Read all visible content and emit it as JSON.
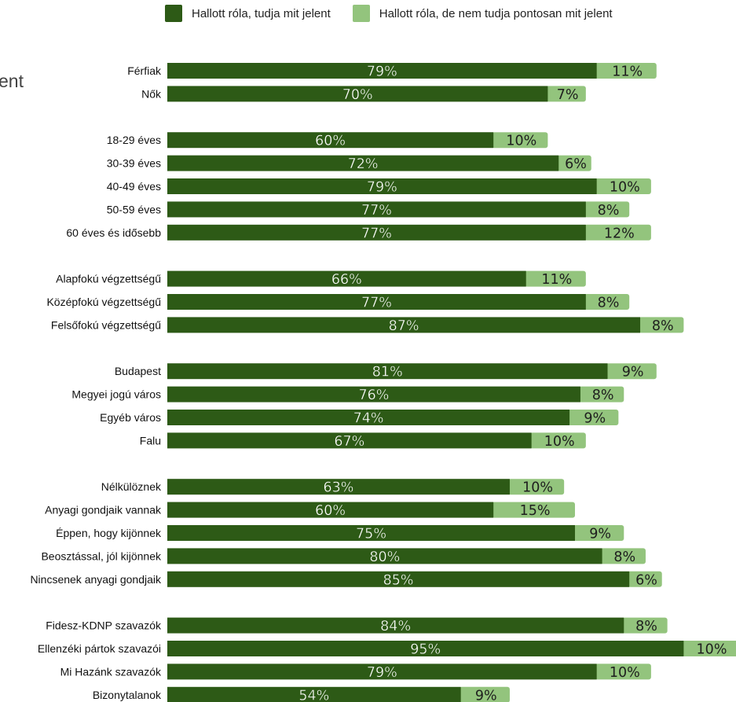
{
  "partial_title": "ent",
  "colors": {
    "dark": "#2d5a16",
    "light": "#93c47d"
  },
  "chart_data": {
    "type": "bar",
    "stacked": true,
    "orientation": "horizontal",
    "xlim": [
      0,
      100
    ],
    "legend_position": "top",
    "series": [
      {
        "name": "Hallott róla, tudja mit jelent",
        "color": "#2d5a16"
      },
      {
        "name": "Hallott róla, de nem tudja pontosan mit jelent",
        "color": "#93c47d"
      }
    ],
    "groups": [
      [
        {
          "label": "Férfiak",
          "v1": 79,
          "v2": 11
        },
        {
          "label": "Nők",
          "v1": 70,
          "v2": 7
        }
      ],
      [
        {
          "label": "18-29 éves",
          "v1": 60,
          "v2": 10
        },
        {
          "label": "30-39 éves",
          "v1": 72,
          "v2": 6
        },
        {
          "label": "40-49 éves",
          "v1": 79,
          "v2": 10
        },
        {
          "label": "50-59 éves",
          "v1": 77,
          "v2": 8
        },
        {
          "label": "60 éves és idősebb",
          "v1": 77,
          "v2": 12
        }
      ],
      [
        {
          "label": "Alapfokú végzettségű",
          "v1": 66,
          "v2": 11
        },
        {
          "label": "Középfokú végzettségű",
          "v1": 77,
          "v2": 8
        },
        {
          "label": "Felsőfokú végzettségű",
          "v1": 87,
          "v2": 8
        }
      ],
      [
        {
          "label": "Budapest",
          "v1": 81,
          "v2": 9
        },
        {
          "label": "Megyei jogú város",
          "v1": 76,
          "v2": 8
        },
        {
          "label": "Egyéb város",
          "v1": 74,
          "v2": 9
        },
        {
          "label": "Falu",
          "v1": 67,
          "v2": 10
        }
      ],
      [
        {
          "label": "Nélkülöznek",
          "v1": 63,
          "v2": 10
        },
        {
          "label": "Anyagi gondjaik vannak",
          "v1": 60,
          "v2": 15
        },
        {
          "label": "Éppen, hogy kijönnek",
          "v1": 75,
          "v2": 9
        },
        {
          "label": "Beosztással, jól kijönnek",
          "v1": 80,
          "v2": 8
        },
        {
          "label": "Nincsenek anyagi gondjaik",
          "v1": 85,
          "v2": 6
        }
      ],
      [
        {
          "label": "Fidesz-KDNP szavazók",
          "v1": 84,
          "v2": 8
        },
        {
          "label": "Ellenzéki pártok szavazói",
          "v1": 95,
          "v2": 10
        },
        {
          "label": "Mi Hazánk szavazók",
          "v1": 79,
          "v2": 10
        },
        {
          "label": "Bizonytalanok",
          "v1": 54,
          "v2": 9
        }
      ]
    ]
  }
}
